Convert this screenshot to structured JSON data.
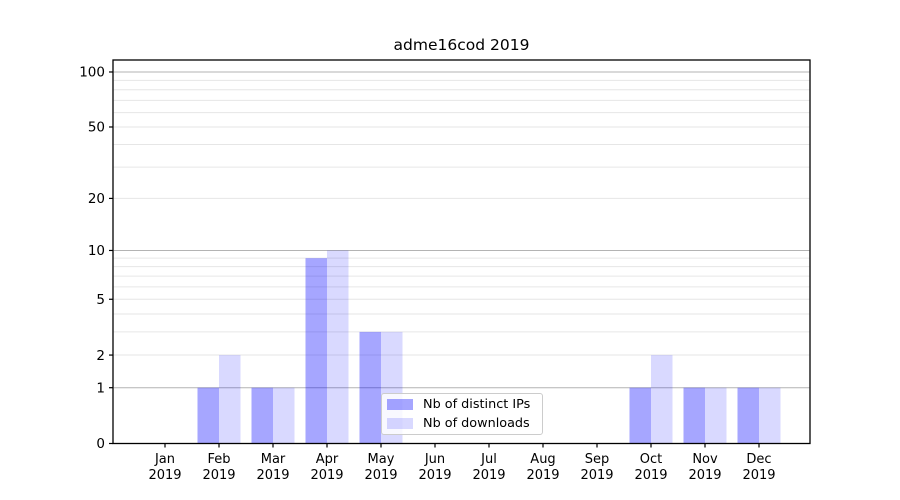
{
  "figure": {
    "title": "adme16cod 2019",
    "background_color": "#ffffff"
  },
  "legend": {
    "items": [
      {
        "label": "Nb of distinct IPs",
        "color": "rgba(0,0,255,0.35)"
      },
      {
        "label": "Nb of downloads",
        "color": "rgba(0,0,255,0.15)"
      }
    ]
  },
  "chart_data": {
    "type": "bar",
    "title": "adme16cod 2019",
    "xlabel": "",
    "ylabel": "",
    "categories": [
      "Jan",
      "Feb",
      "Mar",
      "Apr",
      "May",
      "Jun",
      "Jul",
      "Aug",
      "Sep",
      "Oct",
      "Nov",
      "Dec"
    ],
    "category_sublabel": "2019",
    "series": [
      {
        "name": "Nb of distinct IPs",
        "color": "rgba(0,0,255,0.35)",
        "values": [
          0,
          1,
          1,
          9,
          3,
          0,
          0,
          0,
          0,
          1,
          1,
          1
        ]
      },
      {
        "name": "Nb of downloads",
        "color": "rgba(0,0,255,0.15)",
        "values": [
          0,
          2,
          1,
          10,
          3,
          0,
          0,
          0,
          0,
          2,
          1,
          1
        ]
      }
    ],
    "yscale": "log1p",
    "ylim": [
      0,
      115
    ],
    "y_tick_values": [
      0,
      1,
      2,
      5,
      10,
      20,
      50,
      100
    ],
    "y_major_gridlines": [
      1,
      10,
      100
    ],
    "y_minor_gridlines": [
      2,
      3,
      4,
      5,
      6,
      7,
      8,
      9,
      20,
      30,
      40,
      50,
      60,
      70,
      80,
      90
    ],
    "grid_major_color": "#b3b3b3",
    "grid_minor_color": "#e6e6e6",
    "spine_color": "#000000",
    "text_color": "#000000",
    "legend_location": "lower center",
    "grid": "on"
  }
}
